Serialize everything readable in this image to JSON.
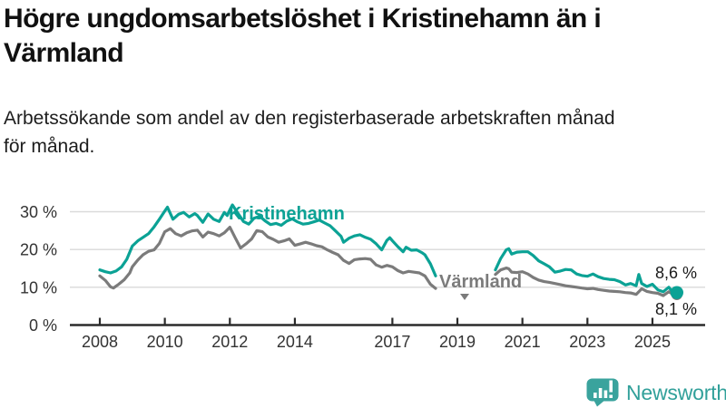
{
  "header": {
    "title_lines": [
      "Högre ungdomsarbetslöshet i Kristinehamn än i",
      "Värmland"
    ],
    "subtitle_lines": [
      "Arbetssökande som andel av den registerbaserade arbetskraften månad",
      "för månad."
    ]
  },
  "footer": {
    "brand": "Newsworthy",
    "brand_color": "#3aa39d"
  },
  "colors": {
    "kristinehamn": "#0ba295",
    "varmland": "#7b7b7b",
    "gridline": "#dadada",
    "axis": "#2b2b2b"
  },
  "chart_data": {
    "type": "line",
    "unit": "%",
    "grid": "horizontal",
    "data_gap_years": [
      2018.4,
      2020.1
    ],
    "x_axis": {
      "ticks": [
        2008,
        2010,
        2012,
        2014,
        2017,
        2019,
        2021,
        2023,
        2025
      ],
      "range": [
        2007.7,
        2026.3
      ]
    },
    "y_axis": {
      "ticks": [
        0,
        10,
        20,
        30
      ],
      "tick_labels": [
        "0 %",
        "10 %",
        "20 %",
        "30 %"
      ],
      "range": [
        0,
        34.5
      ]
    },
    "series": [
      {
        "name": "Kristinehamn",
        "color": "#0ba295",
        "end_value": 8.6,
        "end_label": "8,6 %",
        "segments": [
          [
            [
              2008.0,
              14.6
            ],
            [
              2008.17,
              14.1
            ],
            [
              2008.33,
              13.8
            ],
            [
              2008.5,
              14.3
            ],
            [
              2008.67,
              15.4
            ],
            [
              2008.83,
              17.4
            ],
            [
              2009.0,
              20.9
            ],
            [
              2009.17,
              22.3
            ],
            [
              2009.33,
              23.2
            ],
            [
              2009.5,
              24.2
            ],
            [
              2009.67,
              26.0
            ],
            [
              2009.83,
              28.0
            ],
            [
              2010.0,
              30.2
            ],
            [
              2010.08,
              31.2
            ],
            [
              2010.25,
              28.0
            ],
            [
              2010.42,
              29.3
            ],
            [
              2010.58,
              29.8
            ],
            [
              2010.75,
              28.6
            ],
            [
              2010.92,
              29.5
            ],
            [
              2011.0,
              29.0
            ],
            [
              2011.17,
              27.2
            ],
            [
              2011.33,
              29.4
            ],
            [
              2011.5,
              28.0
            ],
            [
              2011.67,
              27.4
            ],
            [
              2011.83,
              29.8
            ],
            [
              2011.92,
              29.0
            ],
            [
              2012.0,
              30.5
            ],
            [
              2012.08,
              31.8
            ],
            [
              2012.25,
              29.6
            ],
            [
              2012.42,
              27.4
            ],
            [
              2012.58,
              26.7
            ],
            [
              2012.75,
              28.3
            ],
            [
              2012.92,
              28.8
            ],
            [
              2013.08,
              27.6
            ],
            [
              2013.25,
              26.6
            ],
            [
              2013.42,
              26.9
            ],
            [
              2013.58,
              26.4
            ],
            [
              2013.75,
              27.5
            ],
            [
              2013.92,
              28.1
            ],
            [
              2014.08,
              27.3
            ],
            [
              2014.25,
              26.7
            ],
            [
              2014.42,
              26.9
            ],
            [
              2014.58,
              27.3
            ],
            [
              2014.75,
              27.8
            ],
            [
              2014.92,
              27.0
            ],
            [
              2015.08,
              26.3
            ],
            [
              2015.25,
              24.9
            ],
            [
              2015.42,
              23.5
            ],
            [
              2015.5,
              21.9
            ],
            [
              2015.67,
              23.0
            ],
            [
              2015.83,
              23.6
            ],
            [
              2016.0,
              23.9
            ],
            [
              2016.17,
              23.2
            ],
            [
              2016.33,
              22.7
            ],
            [
              2016.5,
              21.5
            ],
            [
              2016.67,
              19.9
            ],
            [
              2016.83,
              22.4
            ],
            [
              2016.92,
              23.1
            ],
            [
              2017.0,
              22.3
            ],
            [
              2017.17,
              20.7
            ],
            [
              2017.33,
              19.4
            ],
            [
              2017.42,
              20.6
            ],
            [
              2017.58,
              19.8
            ],
            [
              2017.75,
              19.9
            ],
            [
              2017.92,
              19.1
            ],
            [
              2018.0,
              18.6
            ],
            [
              2018.17,
              16.2
            ],
            [
              2018.33,
              13.0
            ]
          ],
          [
            [
              2020.17,
              14.6
            ],
            [
              2020.33,
              17.6
            ],
            [
              2020.5,
              19.9
            ],
            [
              2020.58,
              20.2
            ],
            [
              2020.67,
              18.8
            ],
            [
              2020.83,
              19.3
            ],
            [
              2021.0,
              19.4
            ],
            [
              2021.17,
              19.4
            ],
            [
              2021.33,
              18.4
            ],
            [
              2021.5,
              17.0
            ],
            [
              2021.67,
              16.2
            ],
            [
              2021.83,
              15.4
            ],
            [
              2022.0,
              14.0
            ],
            [
              2022.17,
              14.3
            ],
            [
              2022.33,
              14.7
            ],
            [
              2022.5,
              14.6
            ],
            [
              2022.67,
              13.5
            ],
            [
              2022.83,
              13.1
            ],
            [
              2023.0,
              12.9
            ],
            [
              2023.17,
              13.5
            ],
            [
              2023.33,
              12.8
            ],
            [
              2023.5,
              12.3
            ],
            [
              2023.67,
              12.1
            ],
            [
              2023.83,
              12.0
            ],
            [
              2024.0,
              11.5
            ],
            [
              2024.17,
              10.6
            ],
            [
              2024.33,
              11.0
            ],
            [
              2024.5,
              10.4
            ],
            [
              2024.58,
              13.4
            ],
            [
              2024.67,
              11.0
            ],
            [
              2024.83,
              10.2
            ],
            [
              2025.0,
              10.8
            ],
            [
              2025.17,
              9.3
            ],
            [
              2025.33,
              8.8
            ],
            [
              2025.5,
              10.0
            ],
            [
              2025.58,
              9.2
            ],
            [
              2025.75,
              8.6
            ]
          ]
        ]
      },
      {
        "name": "Värmland",
        "color": "#7b7b7b",
        "end_value": 8.1,
        "end_label": "8,1 %",
        "segments": [
          [
            [
              2008.0,
              13.0
            ],
            [
              2008.17,
              11.8
            ],
            [
              2008.33,
              10.1
            ],
            [
              2008.42,
              9.8
            ],
            [
              2008.58,
              10.8
            ],
            [
              2008.75,
              12.0
            ],
            [
              2008.92,
              13.8
            ],
            [
              2009.0,
              15.4
            ],
            [
              2009.17,
              17.2
            ],
            [
              2009.33,
              18.6
            ],
            [
              2009.5,
              19.5
            ],
            [
              2009.67,
              19.9
            ],
            [
              2009.83,
              21.6
            ],
            [
              2010.0,
              24.7
            ],
            [
              2010.17,
              25.5
            ],
            [
              2010.33,
              24.2
            ],
            [
              2010.5,
              23.6
            ],
            [
              2010.67,
              24.4
            ],
            [
              2010.83,
              24.9
            ],
            [
              2011.0,
              25.1
            ],
            [
              2011.17,
              23.3
            ],
            [
              2011.33,
              24.6
            ],
            [
              2011.5,
              24.2
            ],
            [
              2011.67,
              23.6
            ],
            [
              2011.83,
              24.4
            ],
            [
              2012.0,
              25.9
            ],
            [
              2012.17,
              23.0
            ],
            [
              2012.33,
              20.4
            ],
            [
              2012.5,
              21.5
            ],
            [
              2012.67,
              22.8
            ],
            [
              2012.83,
              25.0
            ],
            [
              2013.0,
              24.7
            ],
            [
              2013.17,
              23.3
            ],
            [
              2013.33,
              22.7
            ],
            [
              2013.5,
              21.9
            ],
            [
              2013.67,
              22.3
            ],
            [
              2013.83,
              22.8
            ],
            [
              2014.0,
              21.1
            ],
            [
              2014.17,
              21.5
            ],
            [
              2014.33,
              21.9
            ],
            [
              2014.5,
              21.5
            ],
            [
              2014.67,
              21.0
            ],
            [
              2014.83,
              20.7
            ],
            [
              2015.0,
              19.9
            ],
            [
              2015.17,
              19.2
            ],
            [
              2015.33,
              18.6
            ],
            [
              2015.5,
              17.1
            ],
            [
              2015.67,
              16.3
            ],
            [
              2015.83,
              17.3
            ],
            [
              2016.0,
              17.5
            ],
            [
              2016.17,
              17.6
            ],
            [
              2016.33,
              17.4
            ],
            [
              2016.5,
              15.9
            ],
            [
              2016.67,
              15.3
            ],
            [
              2016.83,
              15.8
            ],
            [
              2017.0,
              15.4
            ],
            [
              2017.17,
              14.4
            ],
            [
              2017.33,
              13.8
            ],
            [
              2017.5,
              14.2
            ],
            [
              2017.67,
              14.0
            ],
            [
              2017.83,
              13.8
            ],
            [
              2018.0,
              13.0
            ],
            [
              2018.17,
              10.8
            ],
            [
              2018.33,
              9.7
            ]
          ],
          [
            [
              2020.17,
              13.4
            ],
            [
              2020.33,
              14.6
            ],
            [
              2020.5,
              15.1
            ],
            [
              2020.58,
              14.9
            ],
            [
              2020.67,
              14.0
            ],
            [
              2020.83,
              13.9
            ],
            [
              2021.0,
              14.1
            ],
            [
              2021.17,
              13.5
            ],
            [
              2021.33,
              12.6
            ],
            [
              2021.5,
              11.9
            ],
            [
              2021.67,
              11.5
            ],
            [
              2021.83,
              11.3
            ],
            [
              2022.0,
              11.0
            ],
            [
              2022.17,
              10.7
            ],
            [
              2022.33,
              10.4
            ],
            [
              2022.5,
              10.2
            ],
            [
              2022.67,
              10.0
            ],
            [
              2022.83,
              9.8
            ],
            [
              2023.0,
              9.6
            ],
            [
              2023.17,
              9.7
            ],
            [
              2023.33,
              9.4
            ],
            [
              2023.5,
              9.2
            ],
            [
              2023.67,
              9.0
            ],
            [
              2023.83,
              8.9
            ],
            [
              2024.0,
              8.8
            ],
            [
              2024.17,
              8.6
            ],
            [
              2024.33,
              8.5
            ],
            [
              2024.5,
              8.1
            ],
            [
              2024.67,
              9.6
            ],
            [
              2024.83,
              8.9
            ],
            [
              2025.0,
              8.6
            ],
            [
              2025.17,
              8.4
            ],
            [
              2025.33,
              7.8
            ],
            [
              2025.5,
              8.8
            ],
            [
              2025.6,
              8.3
            ],
            [
              2025.75,
              8.1
            ]
          ]
        ]
      }
    ]
  }
}
